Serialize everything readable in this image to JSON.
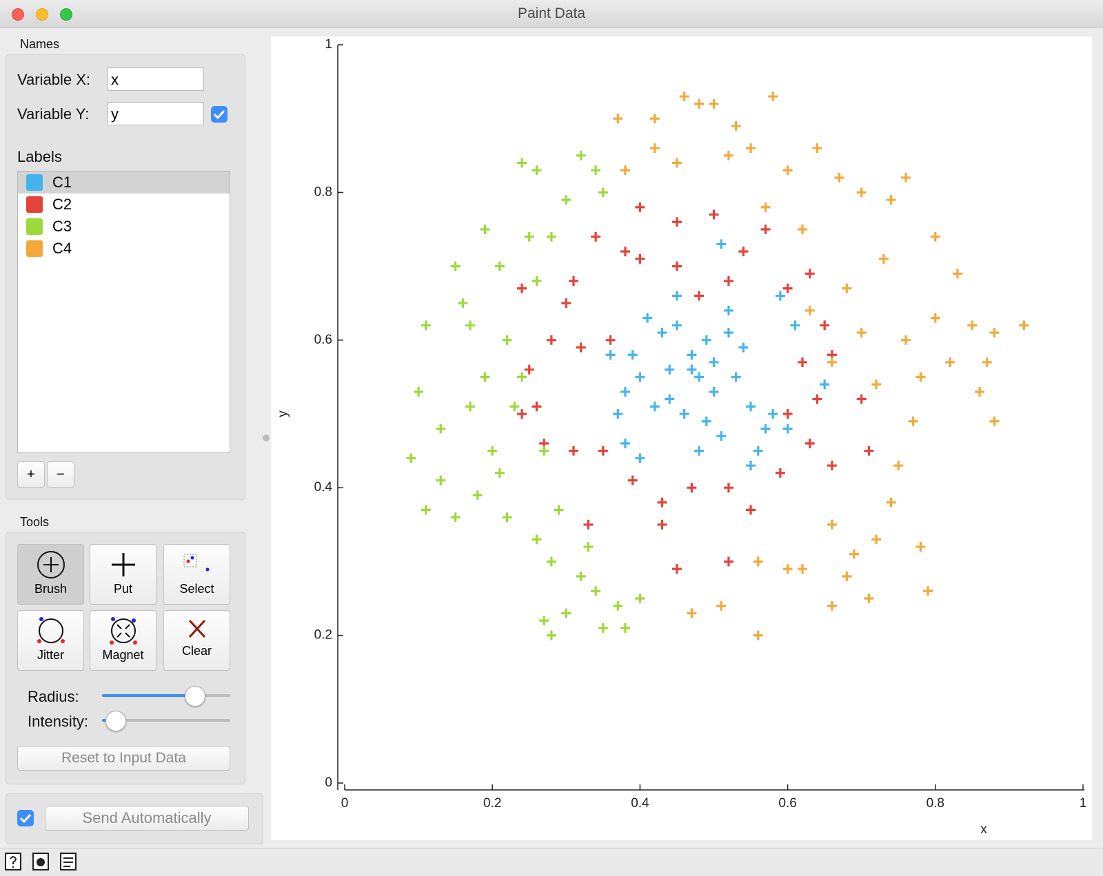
{
  "window": {
    "title": "Paint Data"
  },
  "names": {
    "heading": "Names",
    "variable_x_label": "Variable X:",
    "variable_x": "x",
    "variable_y_label": "Variable Y:",
    "variable_y": "y"
  },
  "labels": {
    "heading": "Labels",
    "add_button": "+",
    "remove_button": "−"
  },
  "tools": {
    "heading": "Tools",
    "buttons": [
      "Brush",
      "Put",
      "Select",
      "Jitter",
      "Magnet",
      "Clear"
    ],
    "radius_label": "Radius:",
    "intensity_label": "Intensity:",
    "radius": 0.72,
    "intensity": 0.1,
    "reset_button": "Reset to Input Data"
  },
  "send_automatically": "Send Automatically",
  "chart_data": {
    "type": "scatter",
    "xlabel": "x",
    "ylabel": "y",
    "xlim": [
      0,
      1
    ],
    "ylim": [
      0,
      1
    ],
    "xticks": [
      0,
      0.2,
      0.4,
      0.6,
      0.8,
      1
    ],
    "yticks": [
      0,
      0.2,
      0.4,
      0.6,
      0.8,
      1
    ],
    "grid": false,
    "series": [
      {
        "name": "C1",
        "color": "#46b4ec",
        "x": [
          0.48,
          0.5,
          0.47,
          0.49,
          0.52,
          0.45,
          0.43,
          0.41,
          0.4,
          0.44,
          0.53,
          0.55,
          0.56,
          0.57,
          0.51,
          0.46,
          0.42,
          0.38,
          0.37,
          0.39,
          0.5,
          0.54,
          0.58,
          0.6,
          0.61,
          0.36,
          0.48,
          0.47,
          0.52,
          0.45,
          0.49,
          0.4,
          0.59,
          0.44,
          0.55,
          0.51,
          0.38,
          0.65
        ],
        "y": [
          0.55,
          0.57,
          0.58,
          0.6,
          0.61,
          0.62,
          0.61,
          0.63,
          0.55,
          0.52,
          0.55,
          0.51,
          0.45,
          0.48,
          0.47,
          0.5,
          0.51,
          0.53,
          0.5,
          0.58,
          0.53,
          0.59,
          0.5,
          0.48,
          0.62,
          0.58,
          0.45,
          0.56,
          0.64,
          0.66,
          0.49,
          0.44,
          0.66,
          0.56,
          0.43,
          0.73,
          0.46,
          0.54
        ]
      },
      {
        "name": "C2",
        "color": "#e2433a",
        "x": [
          0.3,
          0.31,
          0.34,
          0.38,
          0.4,
          0.45,
          0.5,
          0.54,
          0.57,
          0.6,
          0.63,
          0.65,
          0.62,
          0.66,
          0.64,
          0.6,
          0.63,
          0.59,
          0.55,
          0.52,
          0.47,
          0.43,
          0.39,
          0.35,
          0.31,
          0.27,
          0.24,
          0.26,
          0.25,
          0.28,
          0.32,
          0.36,
          0.45,
          0.52,
          0.66,
          0.7,
          0.45,
          0.4,
          0.48,
          0.52,
          0.33,
          0.43,
          0.24,
          0.71
        ],
        "y": [
          0.65,
          0.68,
          0.74,
          0.72,
          0.78,
          0.76,
          0.77,
          0.72,
          0.75,
          0.67,
          0.69,
          0.62,
          0.57,
          0.58,
          0.52,
          0.5,
          0.46,
          0.42,
          0.37,
          0.4,
          0.4,
          0.38,
          0.41,
          0.45,
          0.45,
          0.46,
          0.5,
          0.51,
          0.56,
          0.6,
          0.59,
          0.6,
          0.29,
          0.3,
          0.43,
          0.52,
          0.7,
          0.71,
          0.66,
          0.68,
          0.35,
          0.35,
          0.67,
          0.45
        ]
      },
      {
        "name": "C3",
        "color": "#9ed93a",
        "x": [
          0.1,
          0.11,
          0.09,
          0.13,
          0.15,
          0.16,
          0.17,
          0.19,
          0.21,
          0.22,
          0.24,
          0.2,
          0.23,
          0.25,
          0.24,
          0.26,
          0.32,
          0.34,
          0.35,
          0.26,
          0.28,
          0.3,
          0.18,
          0.15,
          0.11,
          0.13,
          0.22,
          0.26,
          0.28,
          0.32,
          0.27,
          0.28,
          0.35,
          0.38,
          0.4,
          0.37,
          0.34,
          0.3,
          0.19,
          0.17,
          0.21,
          0.29,
          0.33,
          0.27
        ],
        "y": [
          0.53,
          0.62,
          0.44,
          0.48,
          0.7,
          0.65,
          0.62,
          0.75,
          0.7,
          0.6,
          0.55,
          0.45,
          0.51,
          0.74,
          0.84,
          0.83,
          0.85,
          0.83,
          0.8,
          0.68,
          0.74,
          0.79,
          0.39,
          0.36,
          0.37,
          0.41,
          0.36,
          0.33,
          0.3,
          0.28,
          0.22,
          0.2,
          0.21,
          0.21,
          0.25,
          0.24,
          0.26,
          0.23,
          0.55,
          0.51,
          0.42,
          0.37,
          0.32,
          0.45
        ]
      },
      {
        "name": "C4",
        "color": "#f3a93a",
        "x": [
          0.46,
          0.48,
          0.5,
          0.58,
          0.37,
          0.42,
          0.53,
          0.55,
          0.42,
          0.52,
          0.6,
          0.64,
          0.67,
          0.7,
          0.74,
          0.76,
          0.8,
          0.83,
          0.85,
          0.87,
          0.88,
          0.92,
          0.88,
          0.86,
          0.82,
          0.78,
          0.77,
          0.75,
          0.74,
          0.72,
          0.69,
          0.68,
          0.66,
          0.6,
          0.62,
          0.71,
          0.79,
          0.56,
          0.47,
          0.51,
          0.56,
          0.63,
          0.66,
          0.7,
          0.72,
          0.62,
          0.68,
          0.73,
          0.8,
          0.76,
          0.66,
          0.78,
          0.57,
          0.45,
          0.38
        ],
        "y": [
          0.93,
          0.92,
          0.92,
          0.93,
          0.9,
          0.9,
          0.89,
          0.86,
          0.86,
          0.85,
          0.83,
          0.86,
          0.82,
          0.8,
          0.79,
          0.82,
          0.74,
          0.69,
          0.62,
          0.57,
          0.61,
          0.62,
          0.49,
          0.53,
          0.57,
          0.55,
          0.49,
          0.43,
          0.38,
          0.33,
          0.31,
          0.28,
          0.24,
          0.29,
          0.29,
          0.25,
          0.26,
          0.2,
          0.23,
          0.24,
          0.3,
          0.64,
          0.57,
          0.61,
          0.54,
          0.75,
          0.67,
          0.71,
          0.63,
          0.6,
          0.35,
          0.32,
          0.78,
          0.84,
          0.83
        ]
      }
    ]
  }
}
